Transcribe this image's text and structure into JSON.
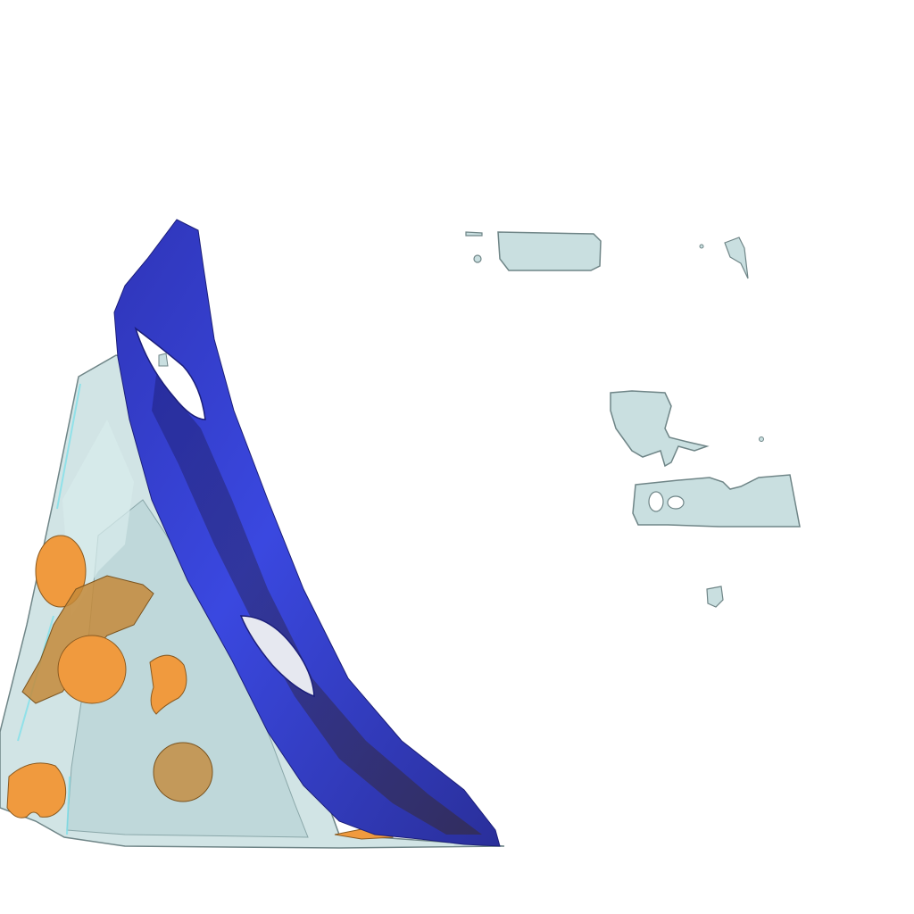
{
  "scene": {
    "background": "#ffffff",
    "colors": {
      "translucent_surface": "#c9dfe0",
      "translucent_edge": "#6f8587",
      "blue_sheet": "#3340d6",
      "blue_sheet_dark": "#1c1f7a",
      "blue_sheet_shadow": "#3b2a16",
      "orange_blobs": "#f09a3e",
      "orange_blobs_dark": "#b0702a"
    }
  }
}
